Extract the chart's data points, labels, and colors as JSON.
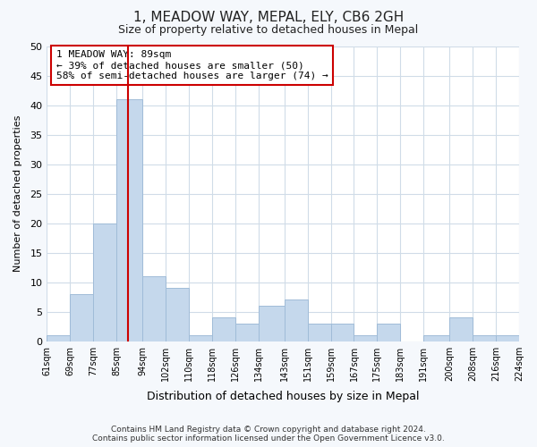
{
  "title": "1, MEADOW WAY, MEPAL, ELY, CB6 2GH",
  "subtitle": "Size of property relative to detached houses in Mepal",
  "xlabel": "Distribution of detached houses by size in Mepal",
  "ylabel": "Number of detached properties",
  "bin_edges": [
    61,
    69,
    77,
    85,
    94,
    102,
    110,
    118,
    126,
    134,
    143,
    151,
    159,
    167,
    175,
    183,
    191,
    200,
    208,
    216,
    224
  ],
  "bar_heights": [
    1,
    8,
    20,
    41,
    11,
    9,
    1,
    4,
    3,
    6,
    7,
    3,
    3,
    1,
    3,
    0,
    1,
    4,
    1,
    1
  ],
  "bar_color": "#c5d8ec",
  "bar_edgecolor": "#a0bcd8",
  "vline_x": 89,
  "vline_color": "#cc0000",
  "ylim": [
    0,
    50
  ],
  "yticks": [
    0,
    5,
    10,
    15,
    20,
    25,
    30,
    35,
    40,
    45,
    50
  ],
  "annotation_text": "1 MEADOW WAY: 89sqm\n← 39% of detached houses are smaller (50)\n58% of semi-detached houses are larger (74) →",
  "annotation_box_edgecolor": "#cc0000",
  "annotation_box_facecolor": "#ffffff",
  "footer_text": "Contains HM Land Registry data © Crown copyright and database right 2024.\nContains public sector information licensed under the Open Government Licence v3.0.",
  "plot_bg_color": "#ffffff",
  "fig_bg_color": "#f5f8fc",
  "grid_color": "#d0dce8",
  "tick_labels": [
    "61sqm",
    "69sqm",
    "77sqm",
    "85sqm",
    "94sqm",
    "102sqm",
    "110sqm",
    "118sqm",
    "126sqm",
    "134sqm",
    "143sqm",
    "151sqm",
    "159sqm",
    "167sqm",
    "175sqm",
    "183sqm",
    "191sqm",
    "200sqm",
    "208sqm",
    "216sqm",
    "224sqm"
  ]
}
